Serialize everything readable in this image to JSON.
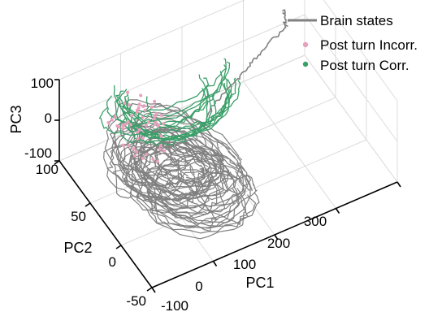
{
  "chart_data": {
    "type": "line",
    "projection": "3d",
    "grid": true,
    "legend_position": "top-right",
    "axes": {
      "x": {
        "label": "PC1",
        "range": [
          -100,
          300
        ],
        "ticks": [
          -100,
          0,
          100,
          200,
          300
        ]
      },
      "y": {
        "label": "PC2",
        "range": [
          -50,
          100
        ],
        "ticks": [
          -50,
          0,
          50,
          100
        ]
      },
      "z": {
        "label": "PC3",
        "range": [
          -100,
          100
        ],
        "ticks": [
          -100,
          0,
          100
        ]
      }
    },
    "series": [
      {
        "name": "Brain states",
        "style": "line",
        "color": "#808080"
      },
      {
        "name": "Post turn Incorr.",
        "style": "points",
        "color": "#e8a0bc"
      },
      {
        "name": "Post turn Corr.",
        "style": "points",
        "color": "#3aa06a"
      }
    ]
  }
}
